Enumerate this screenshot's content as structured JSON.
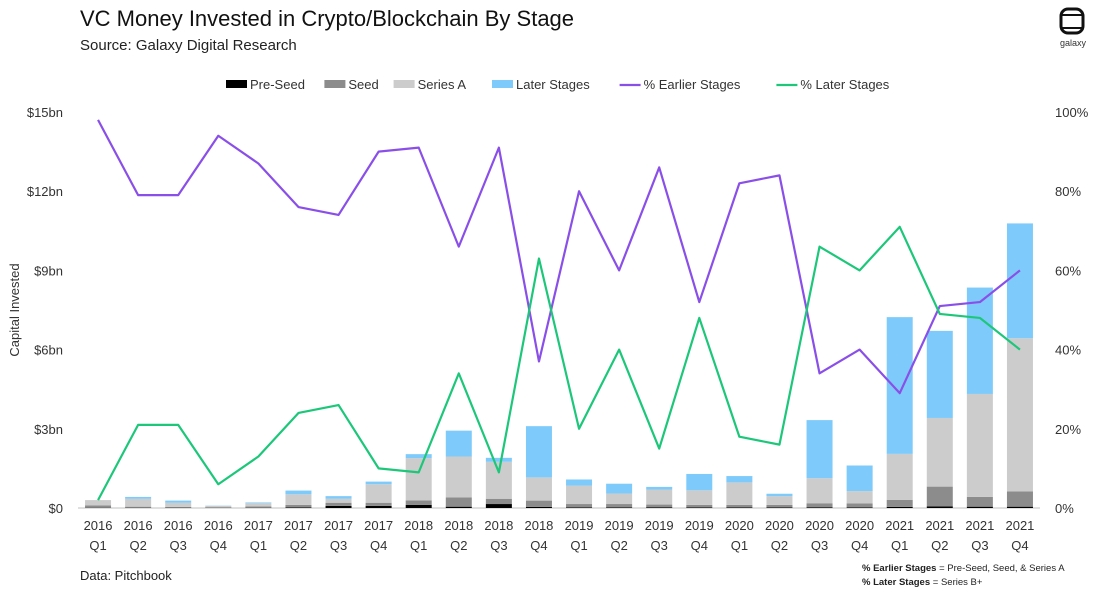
{
  "header": {
    "title": "VC Money Invested in Crypto/Blockchain By Stage",
    "subtitle": "Source: Galaxy Digital Research",
    "logo_text": "galaxy"
  },
  "footer": {
    "data_source": "Data: Pitchbook",
    "note1_bold": "% Earlier Stages",
    "note1_rest": " = Pre-Seed, Seed, & Series A",
    "note2_bold": "% Later Stages",
    "note2_rest": " = Series B+"
  },
  "chart_data": {
    "type": "bar",
    "stacked": true,
    "title": "VC Money Invested in Crypto/Blockchain By Stage",
    "ylabel": "Capital Invested",
    "ylim": [
      0,
      15
    ],
    "y_unit": "bn",
    "y_ticks": [
      "$0",
      "$3bn",
      "$6bn",
      "$9bn",
      "$12bn",
      "$15bn"
    ],
    "y2lim": [
      0,
      100
    ],
    "y2_ticks": [
      "0%",
      "20%",
      "40%",
      "60%",
      "80%",
      "100%"
    ],
    "legend_position": "top-center",
    "categories": [
      [
        "2016",
        "Q1"
      ],
      [
        "2016",
        "Q2"
      ],
      [
        "2016",
        "Q3"
      ],
      [
        "2016",
        "Q4"
      ],
      [
        "2017",
        "Q1"
      ],
      [
        "2017",
        "Q2"
      ],
      [
        "2017",
        "Q3"
      ],
      [
        "2017",
        "Q4"
      ],
      [
        "2018",
        "Q1"
      ],
      [
        "2018",
        "Q2"
      ],
      [
        "2018",
        "Q3"
      ],
      [
        "2018",
        "Q4"
      ],
      [
        "2019",
        "Q1"
      ],
      [
        "2019",
        "Q2"
      ],
      [
        "2019",
        "Q3"
      ],
      [
        "2019",
        "Q4"
      ],
      [
        "2020",
        "Q1"
      ],
      [
        "2020",
        "Q2"
      ],
      [
        "2020",
        "Q3"
      ],
      [
        "2020",
        "Q4"
      ],
      [
        "2021",
        "Q1"
      ],
      [
        "2021",
        "Q2"
      ],
      [
        "2021",
        "Q3"
      ],
      [
        "2021",
        "Q4"
      ]
    ],
    "bar_series": [
      {
        "name": "Pre-Seed",
        "color": "#000000",
        "values": [
          0.01,
          0.01,
          0.01,
          0.01,
          0.01,
          0.02,
          0.08,
          0.08,
          0.12,
          0.05,
          0.15,
          0.04,
          0.02,
          0.02,
          0.03,
          0.02,
          0.02,
          0.02,
          0.03,
          0.02,
          0.04,
          0.06,
          0.05,
          0.05
        ]
      },
      {
        "name": "Seed",
        "color": "#8c8c8c",
        "values": [
          0.09,
          0.04,
          0.03,
          0.02,
          0.05,
          0.1,
          0.12,
          0.12,
          0.17,
          0.35,
          0.2,
          0.24,
          0.13,
          0.13,
          0.1,
          0.1,
          0.1,
          0.1,
          0.15,
          0.15,
          0.27,
          0.75,
          0.37,
          0.58
        ]
      },
      {
        "name": "Series A",
        "color": "#cccccc",
        "values": [
          0.2,
          0.3,
          0.16,
          0.05,
          0.12,
          0.4,
          0.15,
          0.7,
          1.6,
          1.55,
          1.4,
          0.88,
          0.7,
          0.4,
          0.57,
          0.55,
          0.85,
          0.33,
          0.95,
          0.47,
          1.74,
          2.6,
          3.9,
          5.8
        ]
      },
      {
        "name": "Later Stages",
        "color": "#7ecbfb",
        "values": [
          0.0,
          0.07,
          0.08,
          0.01,
          0.03,
          0.14,
          0.1,
          0.1,
          0.15,
          0.98,
          0.15,
          1.94,
          0.23,
          0.37,
          0.1,
          0.62,
          0.24,
          0.09,
          2.2,
          0.97,
          5.18,
          3.3,
          4.03,
          4.35
        ]
      }
    ],
    "line_series": [
      {
        "name": "% Earlier Stages",
        "color": "#8a4fe8",
        "axis": "right",
        "values": [
          98,
          79,
          79,
          94,
          87,
          76,
          74,
          90,
          91,
          66,
          91,
          37,
          80,
          60,
          86,
          52,
          82,
          84,
          34,
          40,
          29,
          51,
          52,
          60
        ]
      },
      {
        "name": "% Later Stages",
        "color": "#1dc77a",
        "axis": "right",
        "values": [
          2,
          21,
          21,
          6,
          13,
          24,
          26,
          10,
          9,
          34,
          9,
          63,
          20,
          40,
          15,
          48,
          18,
          16,
          66,
          60,
          71,
          49,
          48,
          40
        ]
      }
    ]
  }
}
